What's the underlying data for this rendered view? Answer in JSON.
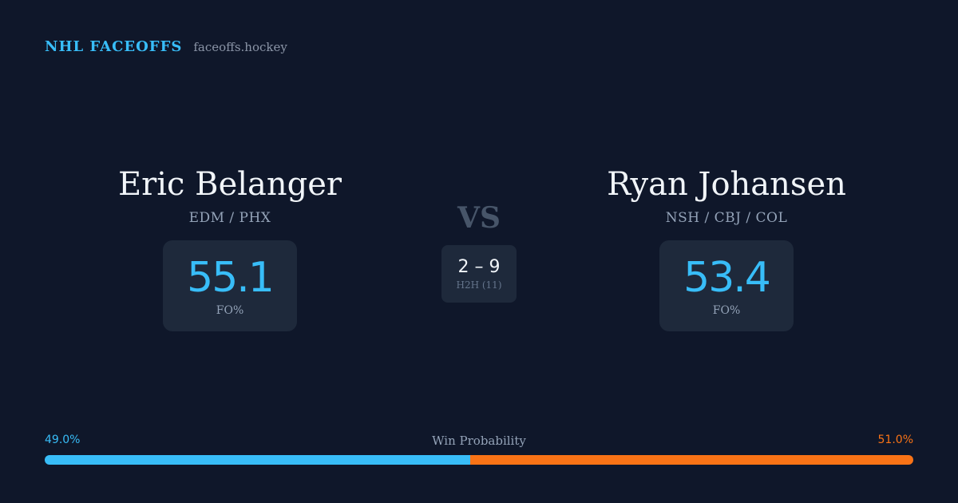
{
  "brand": {
    "title": "NHL FACEOFFS",
    "site": "faceoffs.hockey"
  },
  "player_left": {
    "name": "Eric Belanger",
    "teams": "EDM / PHX",
    "fo_pct": "55.1",
    "fo_label": "FO%"
  },
  "player_right": {
    "name": "Ryan Johansen",
    "teams": "NSH / CBJ / COL",
    "fo_pct": "53.4",
    "fo_label": "FO%"
  },
  "versus": "VS",
  "h2h": {
    "score": "2 – 9",
    "label": "H2H (11)"
  },
  "win_probability": {
    "title": "Win Probability",
    "left_label": "49.0%",
    "right_label": "51.0%",
    "left_value": 49.0,
    "right_value": 51.0
  },
  "colors": {
    "background": "#0f172a",
    "accent_left": "#38bdf8",
    "accent_right": "#f97316",
    "card": "#1e293b"
  }
}
